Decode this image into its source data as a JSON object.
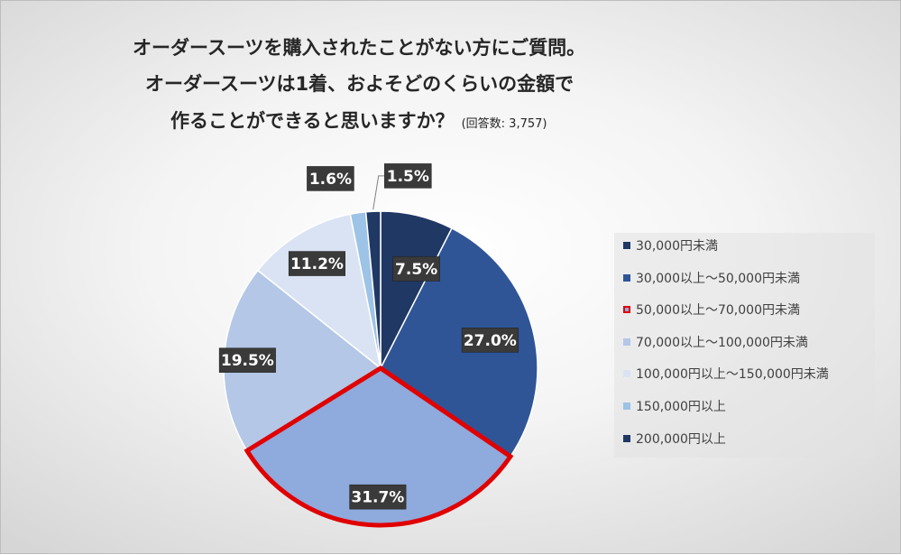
{
  "title": {
    "line1": "オーダースーツを購入されたことがない方にご質問。",
    "line2": "オーダースーツは1着、およそどのくらいの金額で",
    "line3": "作ることができると思いますか？",
    "note": "(回答数: 3,757)"
  },
  "chart_data": {
    "type": "pie",
    "categories": [
      "30,000円未満",
      "30,000以上～50,000円未満",
      "50,000以上～70,000円未満",
      "70,000以上～100,000円未満",
      "100,000円以上～150,000円未満",
      "150,000円以上",
      "200,000円以上"
    ],
    "values": [
      7.5,
      27.0,
      31.7,
      19.5,
      11.2,
      1.6,
      1.5
    ],
    "value_labels": [
      "7.5%",
      "27.0%",
      "31.7%",
      "19.5%",
      "11.2%",
      "1.6%",
      "1.5%"
    ],
    "colors": [
      "#203864",
      "#2f5597",
      "#8faadc",
      "#b4c7e7",
      "#dae3f3",
      "#9dc3e6",
      "#203864"
    ],
    "highlight_index": 2,
    "highlight_color": "#e00000",
    "start_angle_deg": 0,
    "direction": "clockwise",
    "legend_position": "right"
  }
}
